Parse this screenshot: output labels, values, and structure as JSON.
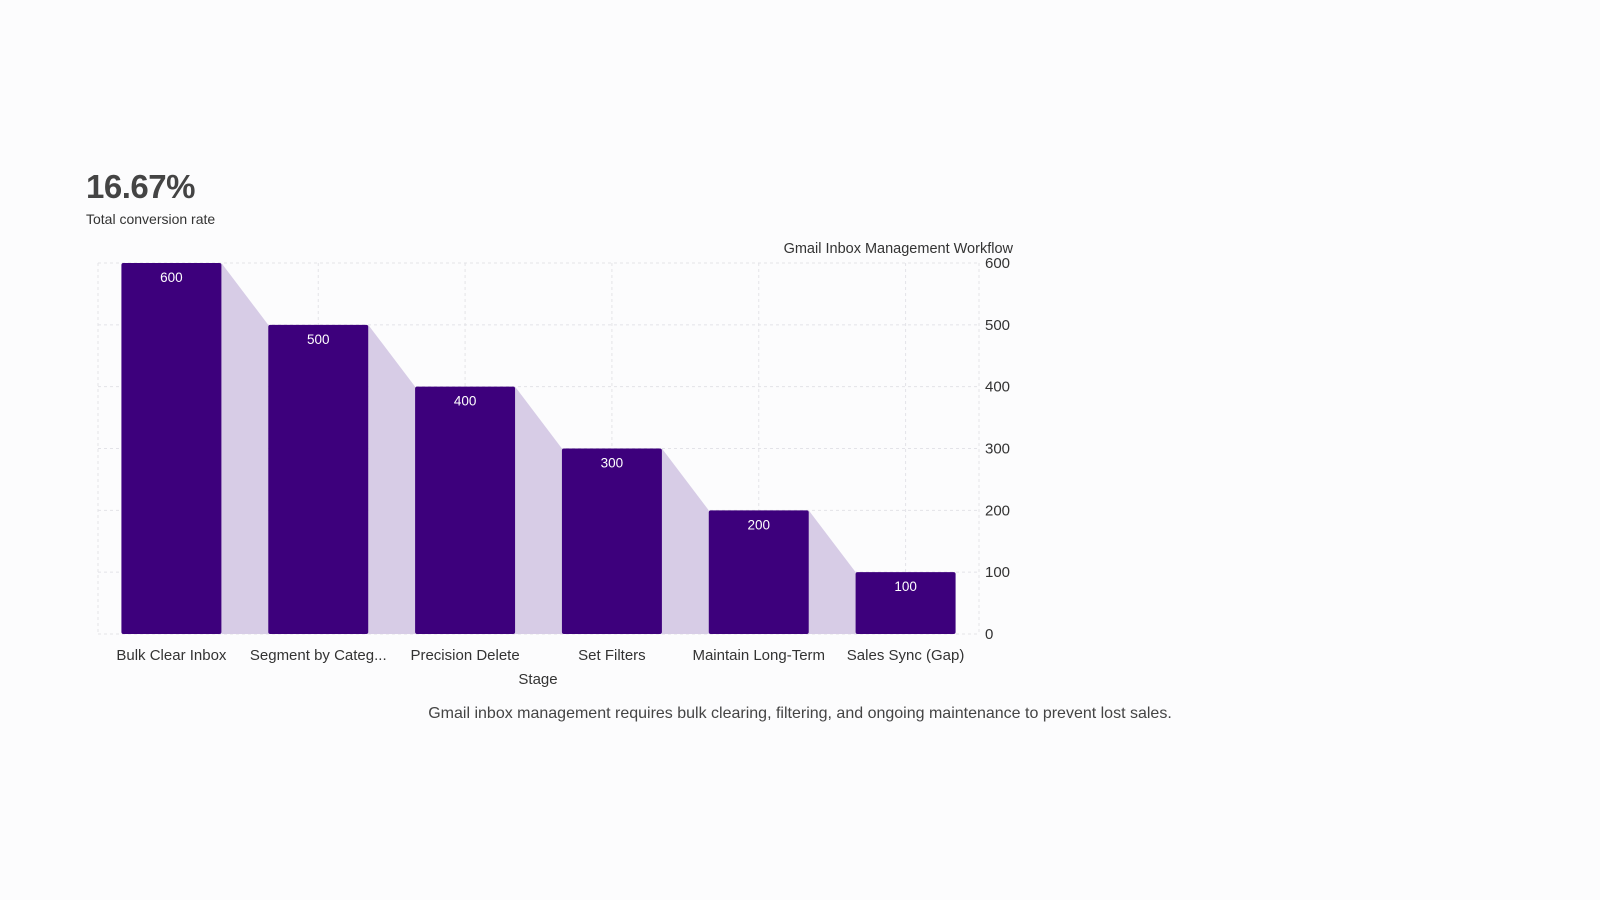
{
  "kpi": {
    "value": "16.67%",
    "label": "Total conversion rate"
  },
  "caption": "Gmail inbox management requires bulk clearing, filtering, and ongoing maintenance to prevent lost sales.",
  "colors": {
    "bar": "#3d007c",
    "connector": "#d7cce6",
    "grid": "#e3e3e8",
    "text": "#333333",
    "bar_label": "#ffffff"
  },
  "chart_data": {
    "type": "bar",
    "title": "Gmail Inbox Management Workflow",
    "xlabel": "Stage",
    "ylabel": "",
    "categories": [
      "Bulk Clear Inbox",
      "Segment by Categ...",
      "Precision Delete",
      "Set Filters",
      "Maintain Long-Term",
      "Sales Sync (Gap)"
    ],
    "values": [
      600,
      500,
      400,
      300,
      200,
      100
    ],
    "ylim": [
      0,
      600
    ],
    "yticks": [
      0,
      100,
      200,
      300,
      400,
      500,
      600
    ],
    "y_axis_side": "right",
    "grid": true,
    "connectors": true
  }
}
